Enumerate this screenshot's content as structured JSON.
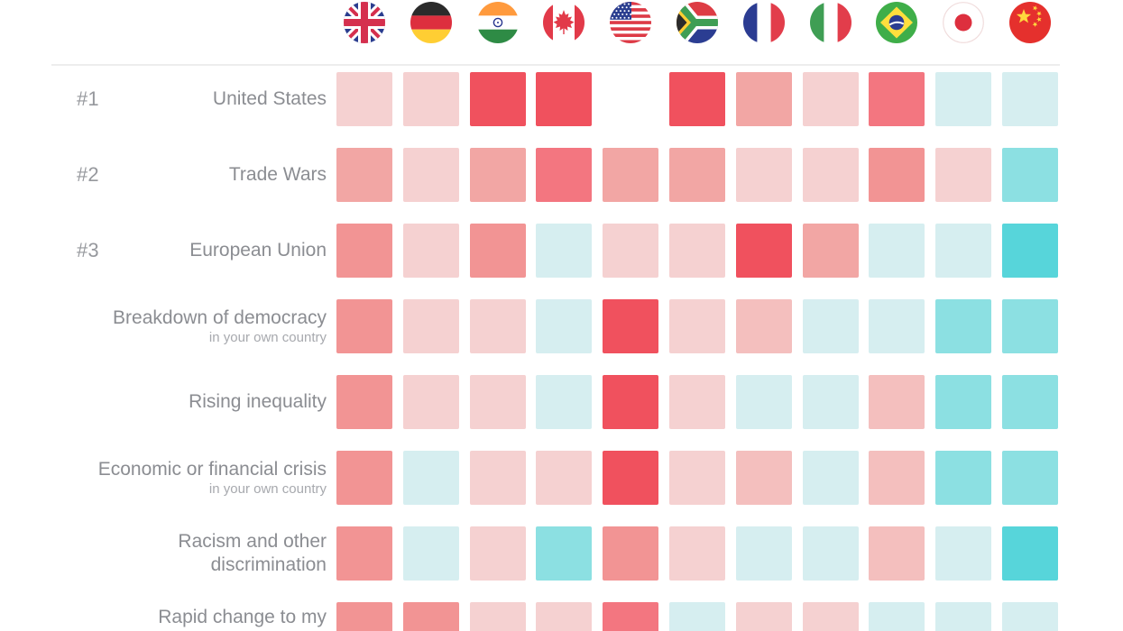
{
  "chart_data": {
    "type": "heatmap",
    "columns": [
      {
        "id": "uk",
        "country": "United Kingdom",
        "icon": "uk-flag-icon"
      },
      {
        "id": "de",
        "country": "Germany",
        "icon": "germany-flag-icon"
      },
      {
        "id": "in",
        "country": "India",
        "icon": "india-flag-icon"
      },
      {
        "id": "ca",
        "country": "Canada",
        "icon": "canada-flag-icon"
      },
      {
        "id": "us",
        "country": "United States",
        "icon": "usa-flag-icon"
      },
      {
        "id": "za",
        "country": "South Africa",
        "icon": "south-africa-flag-icon"
      },
      {
        "id": "fr",
        "country": "France",
        "icon": "france-flag-icon"
      },
      {
        "id": "it",
        "country": "Italy",
        "icon": "italy-flag-icon"
      },
      {
        "id": "br",
        "country": "Brazil",
        "icon": "brazil-flag-icon"
      },
      {
        "id": "jp",
        "country": "Japan",
        "icon": "japan-flag-icon"
      },
      {
        "id": "cn",
        "country": "China",
        "icon": "china-flag-icon"
      }
    ],
    "rows": [
      {
        "rank": "#1",
        "lines": [
          "United States"
        ],
        "sublabel": null,
        "cells": [
          "red1",
          "red1",
          "red5",
          "red5",
          "none",
          "red5",
          "red2",
          "red1",
          "red4",
          "blue1",
          "blue1"
        ]
      },
      {
        "rank": "#2",
        "lines": [
          "Trade Wars"
        ],
        "sublabel": null,
        "cells": [
          "red2",
          "red1",
          "red2",
          "red4",
          "red2",
          "red2",
          "red1",
          "red1",
          "red3",
          "red1",
          "blue2"
        ]
      },
      {
        "rank": "#3",
        "lines": [
          "European Union"
        ],
        "sublabel": null,
        "cells": [
          "red3",
          "red1",
          "red3",
          "blue1",
          "red1",
          "red1",
          "red5",
          "red2",
          "blue1",
          "blue1",
          "blue3"
        ]
      },
      {
        "rank": null,
        "lines": [
          "Breakdown of democracy"
        ],
        "sublabel": "in your own country",
        "cells": [
          "red3",
          "red1",
          "red1",
          "blue1",
          "red5",
          "red1",
          "red15",
          "blue1",
          "blue1",
          "blue2",
          "blue2"
        ]
      },
      {
        "rank": null,
        "lines": [
          "Rising inequality"
        ],
        "sublabel": null,
        "cells": [
          "red3",
          "red1",
          "red1",
          "blue1",
          "red5",
          "red1",
          "blue1",
          "blue1",
          "red15",
          "blue2",
          "blue2"
        ]
      },
      {
        "rank": null,
        "lines": [
          "Economic or financial crisis"
        ],
        "sublabel": "in your own country",
        "cells": [
          "red3",
          "blue1",
          "red1",
          "red1",
          "red5",
          "red1",
          "red15",
          "blue1",
          "red15",
          "blue2",
          "blue2"
        ]
      },
      {
        "rank": null,
        "lines": [
          "Racism and other",
          "discrimination"
        ],
        "sublabel": null,
        "cells": [
          "red3",
          "blue1",
          "red1",
          "blue2",
          "red3",
          "red1",
          "blue1",
          "blue1",
          "red15",
          "blue1",
          "blue3"
        ]
      },
      {
        "rank": null,
        "lines": [
          "Rapid change to my"
        ],
        "sublabel": null,
        "cells": [
          "red3",
          "red3",
          "red1",
          "red1",
          "red4",
          "blue1",
          "red1",
          "red1",
          "blue1",
          "blue1",
          "blue1"
        ]
      }
    ],
    "palette": {
      "red5": "#f0515e",
      "red4": "#f37680",
      "red3": "#f29494",
      "red2": "#f2a6a4",
      "red15": "#f4bfbe",
      "red1": "#f5d1d1",
      "blue1": "#d6eef0",
      "blue2": "#8ce0e2",
      "blue3": "#57d5da",
      "none": "transparent"
    }
  }
}
